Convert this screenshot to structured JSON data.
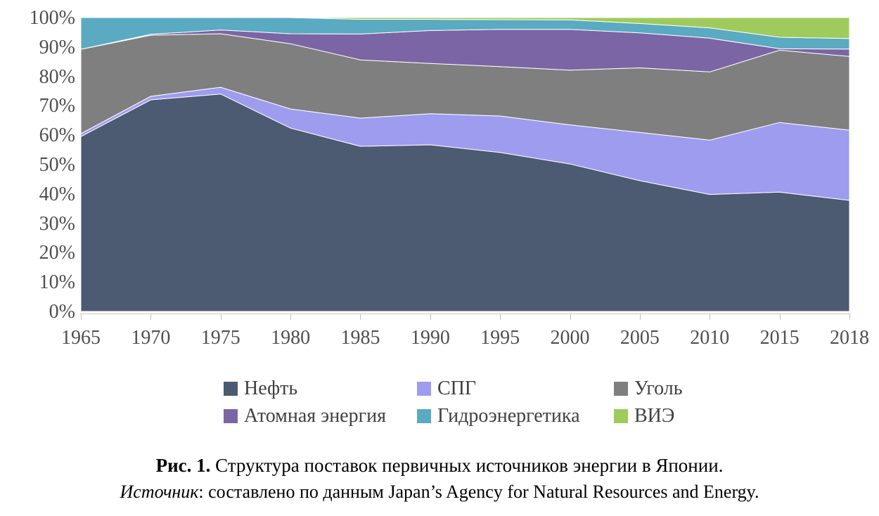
{
  "chart_data": {
    "type": "area",
    "stacking": "percent",
    "title": "",
    "xlabel": "",
    "ylabel": "",
    "ylim": [
      0,
      100
    ],
    "grid": false,
    "legend_position": "bottom",
    "x": [
      "1965",
      "1970",
      "1975",
      "1980",
      "1985",
      "1990",
      "1995",
      "2000",
      "2005",
      "2010",
      "2015",
      "2018"
    ],
    "y_ticks": [
      "0%",
      "10%",
      "20%",
      "30%",
      "40%",
      "50%",
      "60%",
      "70%",
      "80%",
      "90%",
      "100%"
    ],
    "series": [
      {
        "name": "Нефть",
        "color": "#4c5a72",
        "values": [
          59.5,
          72.0,
          74.0,
          62.4,
          56.2,
          56.7,
          54.1,
          50.2,
          44.5,
          39.8,
          40.6,
          37.8
        ]
      },
      {
        "name": "СПГ",
        "color": "#9d9cef",
        "values": [
          1.0,
          1.2,
          2.3,
          6.5,
          9.6,
          10.6,
          12.4,
          13.3,
          16.4,
          18.5,
          23.7,
          23.9
        ]
      },
      {
        "name": "Уголь",
        "color": "#7f7f7f",
        "values": [
          28.7,
          20.8,
          18.2,
          22.2,
          19.8,
          17.1,
          16.8,
          18.6,
          22.0,
          23.2,
          24.6,
          25.1
        ]
      },
      {
        "name": "Атомная энергия",
        "color": "#7c65a4",
        "values": [
          0.0,
          0.3,
          1.3,
          3.4,
          8.8,
          11.2,
          12.7,
          13.9,
          11.9,
          11.5,
          0.5,
          2.5
        ]
      },
      {
        "name": "Гидроэнергетика",
        "color": "#5aaac2",
        "values": [
          10.8,
          5.7,
          4.2,
          5.5,
          5.0,
          3.8,
          3.3,
          3.2,
          3.2,
          3.5,
          3.9,
          3.6
        ]
      },
      {
        "name": "ВИЭ",
        "color": "#9fcb5c",
        "values": [
          0.0,
          0.0,
          0.0,
          0.0,
          0.6,
          0.6,
          0.7,
          0.8,
          2.0,
          3.5,
          6.7,
          7.1
        ]
      }
    ]
  },
  "caption": {
    "figure_label": "Рис. 1.",
    "figure_text": " Структура поставок первичных источников энергии в Японии.",
    "source_label": "Источник",
    "source_text": ": составлено по данным Japan’s Agency for Natural Resources and Energy."
  }
}
